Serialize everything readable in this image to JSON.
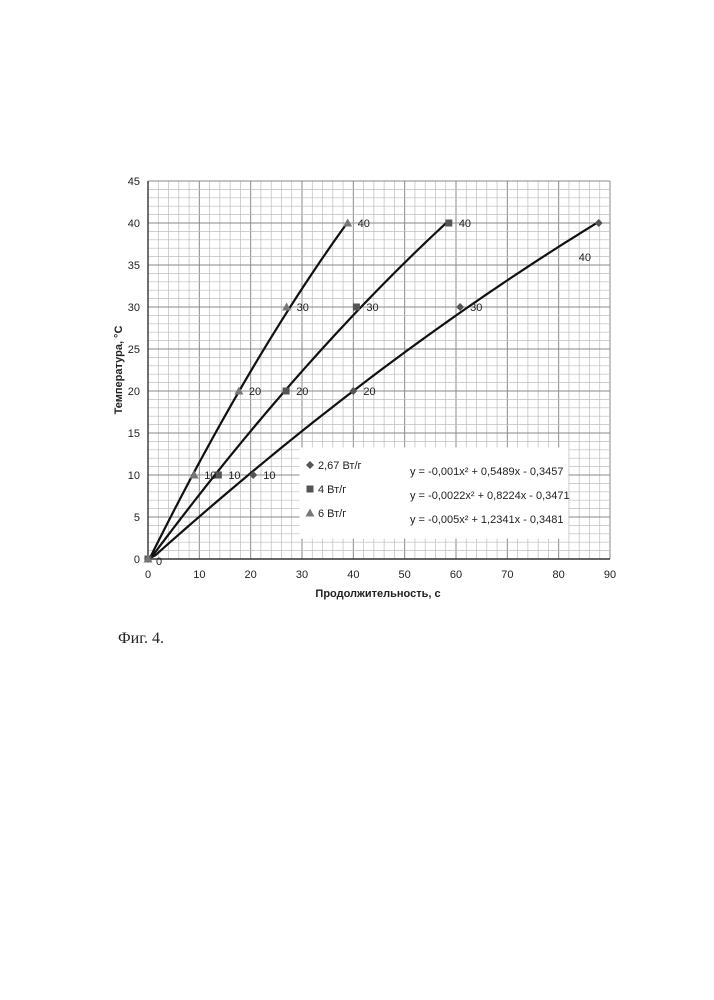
{
  "figure": {
    "caption": "Фиг. 4."
  },
  "chart_data": {
    "type": "scatter",
    "title": "",
    "xlabel": "Продолжительность, с",
    "ylabel": "Температура, °С",
    "xlim": [
      0,
      90
    ],
    "ylim": [
      0,
      45
    ],
    "x_ticks": [
      0,
      10,
      20,
      30,
      40,
      50,
      60,
      70,
      80,
      90
    ],
    "y_ticks": [
      0,
      5,
      10,
      15,
      20,
      25,
      30,
      35,
      40,
      45
    ],
    "grid": true,
    "grid_minor_x": 2,
    "grid_minor_y": 1,
    "legend_placement": "bottom-center",
    "series": [
      {
        "name": "2,67 Вт/г",
        "marker": "diamond",
        "x": [
          0,
          20.5,
          40.0,
          60.8,
          87.8
        ],
        "y": [
          0,
          10,
          20,
          30,
          40
        ],
        "point_labels": [
          "",
          "10",
          "20",
          "30",
          "40"
        ],
        "trend": {
          "a": -0.001,
          "b": 0.5489,
          "c": -0.3457
        },
        "equation": "y = -0,001x² + 0,5489x - 0,3457"
      },
      {
        "name": "4 Вт/г",
        "marker": "square",
        "x": [
          0,
          13.7,
          26.9,
          40.6,
          58.6
        ],
        "y": [
          0,
          10,
          20,
          30,
          40
        ],
        "point_labels": [
          "",
          "10",
          "",
          "30",
          "40"
        ],
        "trend": {
          "a": -0.0022,
          "b": 0.8224,
          "c": -0.3471
        },
        "equation": "y = -0,0022x² + 0,8224x - 0,3471"
      },
      {
        "name": "6 Вт/г",
        "marker": "triangle",
        "x": [
          0,
          9.0,
          17.7,
          27.0,
          38.9
        ],
        "y": [
          0,
          10,
          20,
          30,
          40
        ],
        "point_labels": [
          "0",
          "10",
          "20",
          "30",
          "40"
        ],
        "trend": {
          "a": -0.005,
          "b": 1.2341,
          "c": -0.3481
        },
        "equation": "y = -0,005x² + 1,2341x - 0,3481"
      }
    ],
    "extra_point_labels": [
      "20"
    ]
  }
}
